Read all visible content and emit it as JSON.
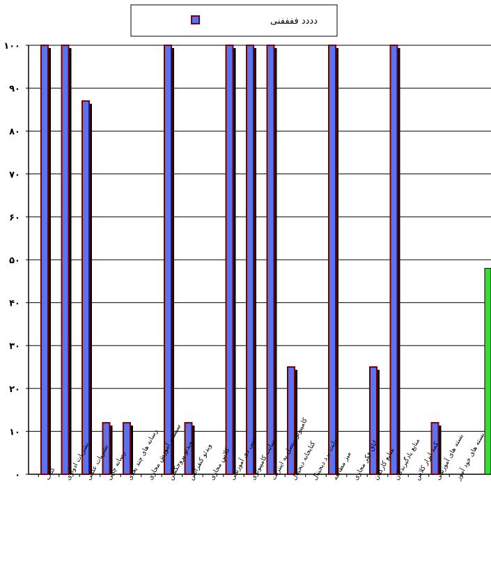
{
  "chart_data": {
    "type": "bar",
    "legend": {
      "label": "دددد ففففنی",
      "position": "top-center",
      "color": "#5a73f0",
      "border_color": "#7a0000"
    },
    "categories": [
      "کتاب",
      "نشریات ادواری",
      "نشریات علمی",
      "رسانه چاپی",
      "رسانه های چند بعدی",
      "سیستم آموزش مجازی",
      "ویدئو پروجکشن",
      "ویدئو کنفرانس",
      "کلاس مجازی",
      "سی دی آموزشی",
      "سایت کامپیوتری",
      "کامپیوتر متصل به اینترنت",
      "کتابخانه دیجیتال",
      "وایت برد دیجیتال",
      "میز مطالعه",
      "اتاق فکر مجازی",
      "منابع کارکنان",
      "منابع یادگیرندگان",
      "کمد ابزار کلاس",
      "بسته های آموزشی",
      "بسته های خود آموز"
    ],
    "values": [
      100,
      100,
      87,
      12,
      12,
      0,
      100,
      12,
      0,
      100,
      100,
      100,
      25,
      0,
      100,
      0,
      25,
      100,
      0,
      12,
      0
    ],
    "extra_bar": {
      "value": 48,
      "color": "#33dd33"
    },
    "ylim": [
      0,
      100
    ],
    "yticks": [
      "۰",
      "۱۰",
      "۲۰",
      "۳۰",
      "۴۰",
      "۵۰",
      "۶۰",
      "۷۰",
      "۸۰",
      "۹۰",
      "۱۰۰"
    ],
    "grid": true,
    "bar_color": "#5a73f0",
    "bar_border": "#7a0000",
    "shadow_color": "#000000"
  }
}
